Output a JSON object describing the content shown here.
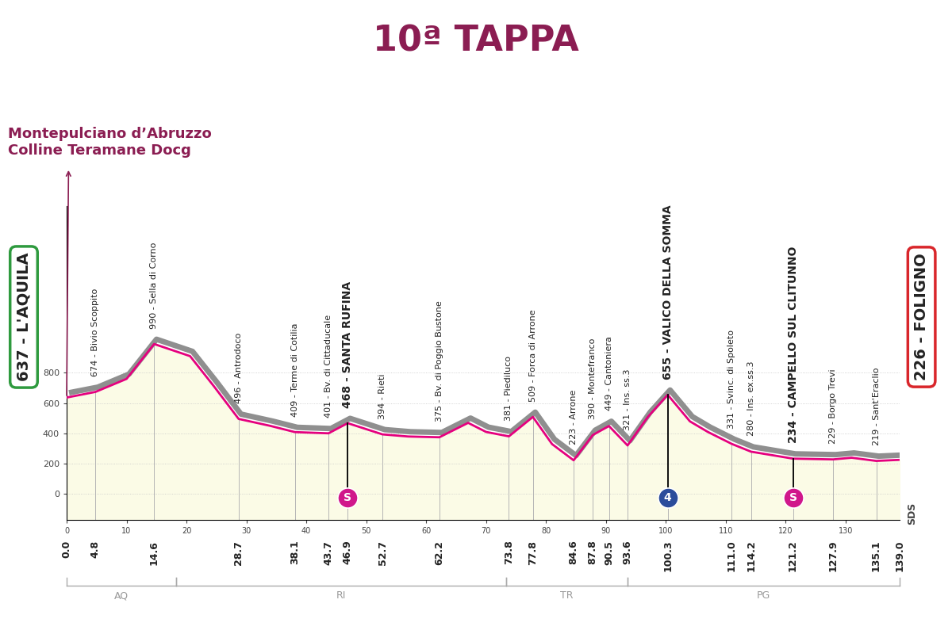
{
  "chart_data": {
    "type": "area",
    "title": "10ª TAPPA",
    "annotation": "Montepulciano d’Abruzzo\nColline Teramane Docg",
    "start": "637 - L'AQUILA",
    "finish": "226 - FOLIGNO",
    "logo": "SDS",
    "color": "#e5007e",
    "grid": true,
    "xlim": [
      0,
      139
    ],
    "xticks": [
      0,
      10,
      20,
      30,
      40,
      50,
      60,
      70,
      80,
      90,
      100,
      110,
      120,
      130
    ],
    "ylim": [
      -170,
      1900
    ],
    "yticks": [
      0,
      200,
      400,
      600,
      800
    ],
    "x": [
      0.0,
      4.8,
      10.0,
      14.6,
      20.6,
      24.6,
      28.7,
      34.0,
      38.1,
      43.7,
      46.9,
      52.7,
      57.0,
      62.2,
      67.0,
      70.0,
      73.8,
      77.8,
      81.0,
      84.6,
      87.8,
      90.5,
      93.6,
      97.0,
      100.3,
      104.0,
      107.0,
      111.0,
      114.2,
      121.2,
      127.9,
      131.0,
      135.1,
      139.0
    ],
    "values": [
      637,
      674,
      760,
      990,
      910,
      710,
      496,
      450,
      409,
      401,
      468,
      394,
      380,
      375,
      470,
      410,
      381,
      509,
      330,
      223,
      390,
      449,
      321,
      510,
      655,
      480,
      410,
      331,
      280,
      234,
      229,
      240,
      219,
      226
    ],
    "points": [
      {
        "km": 4.8,
        "altitude": 674,
        "label": "674 - Bivio Scoppito"
      },
      {
        "km": 14.6,
        "altitude": 990,
        "label": "990 - Sella di Corno"
      },
      {
        "km": 28.7,
        "altitude": 496,
        "label": "496 - Antrodoco"
      },
      {
        "km": 38.1,
        "altitude": 409,
        "label": "409 - Terme di Cotilia"
      },
      {
        "km": 43.7,
        "altitude": 401,
        "label": "401 - Bv. di Cittaducale"
      },
      {
        "km": 46.9,
        "altitude": 468,
        "label": "468 - SANTA RUFINA",
        "sign": "S",
        "color": "#d0178b"
      },
      {
        "km": 52.7,
        "altitude": 394,
        "label": "394 - Rieti"
      },
      {
        "km": 62.2,
        "altitude": 375,
        "label": "375 - Bv. di Poggio Bustone"
      },
      {
        "km": 73.8,
        "altitude": 381,
        "label": "381 - Piediluco"
      },
      {
        "km": 77.8,
        "altitude": 509,
        "label": "509 - Forca di Arrone"
      },
      {
        "km": 84.6,
        "altitude": 223,
        "label": "223 - Arrone"
      },
      {
        "km": 87.8,
        "altitude": 390,
        "label": "390 - Montefranco"
      },
      {
        "km": 90.5,
        "altitude": 449,
        "label": "449 - Cantoniera"
      },
      {
        "km": 93.6,
        "altitude": 321,
        "label": "321 - Ins. ss.3"
      },
      {
        "km": 100.3,
        "altitude": 655,
        "label": "655 - VALICO DELLA SOMMA",
        "sign": "4",
        "color": "#2b4c9b"
      },
      {
        "km": 111.0,
        "altitude": 331,
        "label": "331 - Svinc. di Spoleto"
      },
      {
        "km": 114.2,
        "altitude": 280,
        "label": "280 - Ins. ex.ss.3"
      },
      {
        "km": 121.2,
        "altitude": 234,
        "label": "234 - CAMPELLO SUL CLITUNNO",
        "sign": "S",
        "color": "#d0178b"
      },
      {
        "km": 127.9,
        "altitude": 229,
        "label": "229 - Borgo Trevi"
      },
      {
        "km": 135.1,
        "altitude": 219,
        "label": "219 - Sant'Eraclio"
      }
    ],
    "km_marks": [
      0.0,
      4.8,
      14.6,
      28.7,
      38.1,
      43.7,
      46.9,
      52.7,
      62.2,
      73.8,
      77.8,
      84.6,
      87.8,
      90.5,
      93.6,
      100.3,
      111.0,
      114.2,
      121.2,
      127.9,
      135.1,
      139.0
    ],
    "regions": [
      {
        "label": "AQ",
        "from": 0,
        "to": 18.3
      },
      {
        "label": "RI",
        "from": 18.3,
        "to": 73.3
      },
      {
        "label": "TR",
        "from": 73.3,
        "to": 93.6
      },
      {
        "label": "PG",
        "from": 93.6,
        "to": 139
      }
    ]
  }
}
